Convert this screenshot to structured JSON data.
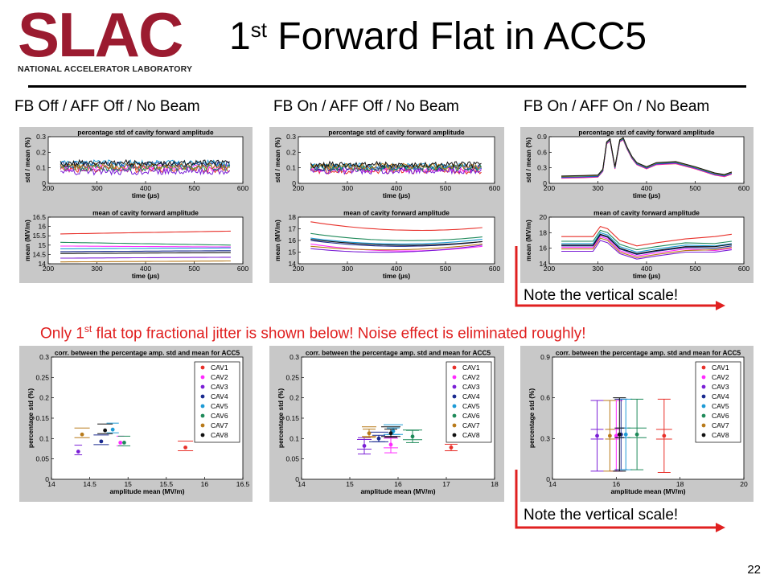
{
  "logo": {
    "text": "SLAC",
    "subtitle": "NATIONAL ACCELERATOR LABORATORY",
    "color": "#9b1b30"
  },
  "slide": {
    "title_prefix": "1",
    "title_sup": "st",
    "title_rest": " Forward Flat in ACC5",
    "page_number": "22"
  },
  "columns": [
    "FB Off / AFF Off / No Beam",
    "FB On / AFF Off / No Beam",
    "FB On / AFF On / No Beam"
  ],
  "notes": {
    "top_right": "Note the vertical scale!",
    "bottom_right": "Note the vertical scale!",
    "middle_pre": "Only 1",
    "middle_sup": "st",
    "middle_post": " flat top fractional jitter is shown below! Noise effect is eliminated roughly!",
    "red": "#e02020"
  },
  "series_colors": {
    "CAV1": "#e8302a",
    "CAV2": "#ff2bff",
    "CAV3": "#7b1fd6",
    "CAV4": "#1a2a8f",
    "CAV5": "#1e9bd6",
    "CAV6": "#1f8a5a",
    "CAV7": "#b87a1a",
    "CAV8": "#111111"
  },
  "chart_data": [
    {
      "id": "std1",
      "type": "line",
      "title": "percentage std of cavity forward amplitude",
      "xlabel": "time (µs)",
      "ylabel": "std / mean (%)",
      "xlim": [
        200,
        600
      ],
      "ylim": [
        0,
        0.3
      ],
      "xticks": [
        200,
        300,
        400,
        500,
        600
      ],
      "yticks": [
        0,
        0.1,
        0.2,
        0.3
      ],
      "xticklabels": [
        "200",
        "300",
        "400",
        "500",
        "600"
      ],
      "yticklabels": [
        "0",
        "0.1",
        "0.2",
        "0.3"
      ],
      "x_range": [
        225,
        575
      ],
      "series": [
        {
          "name": "CAV1",
          "level": 0.09
        },
        {
          "name": "CAV2",
          "level": 0.1
        },
        {
          "name": "CAV3",
          "level": 0.075
        },
        {
          "name": "CAV4",
          "level": 0.12
        },
        {
          "name": "CAV5",
          "level": 0.13
        },
        {
          "name": "CAV6",
          "level": 0.1
        },
        {
          "name": "CAV7",
          "level": 0.11
        },
        {
          "name": "CAV8",
          "level": 0.13
        }
      ]
    },
    {
      "id": "std2",
      "type": "line",
      "title": "percentage std of cavity forward amplitude",
      "xlabel": "time (µs)",
      "ylabel": "std / mean (%)",
      "xlim": [
        200,
        600
      ],
      "ylim": [
        0,
        0.3
      ],
      "xticks": [
        200,
        300,
        400,
        500,
        600
      ],
      "yticks": [
        0,
        0.1,
        0.2,
        0.3
      ],
      "xticklabels": [
        "200",
        "300",
        "400",
        "500",
        "600"
      ],
      "yticklabels": [
        "0",
        "0.1",
        "0.2",
        "0.3"
      ],
      "x_range": [
        225,
        575
      ],
      "series": [
        {
          "name": "CAV1",
          "level": 0.08
        },
        {
          "name": "CAV2",
          "level": 0.09
        },
        {
          "name": "CAV3",
          "level": 0.08
        },
        {
          "name": "CAV4",
          "level": 0.1
        },
        {
          "name": "CAV5",
          "level": 0.11
        },
        {
          "name": "CAV6",
          "level": 0.1
        },
        {
          "name": "CAV7",
          "level": 0.11
        },
        {
          "name": "CAV8",
          "level": 0.12
        }
      ]
    },
    {
      "id": "std3",
      "type": "line",
      "title": "percentage std of cavity forward amplitude",
      "xlabel": "time (µs)",
      "ylabel": "std / mean (%)",
      "xlim": [
        200,
        600
      ],
      "ylim": [
        0,
        0.9
      ],
      "xticks": [
        200,
        300,
        400,
        500,
        600
      ],
      "yticks": [
        0,
        0.3,
        0.6,
        0.9
      ],
      "xticklabels": [
        "200",
        "300",
        "400",
        "500",
        "600"
      ],
      "yticklabels": [
        "0",
        "0.3",
        "0.6",
        "0.9"
      ],
      "x": [
        225,
        270,
        300,
        310,
        318,
        325,
        335,
        345,
        352,
        360,
        370,
        380,
        400,
        420,
        460,
        500,
        540,
        560,
        575
      ],
      "y": [
        0.12,
        0.13,
        0.14,
        0.25,
        0.78,
        0.84,
        0.3,
        0.82,
        0.86,
        0.68,
        0.5,
        0.38,
        0.3,
        0.38,
        0.4,
        0.3,
        0.18,
        0.15,
        0.2
      ],
      "series_names": [
        "CAV1",
        "CAV2",
        "CAV3",
        "CAV4",
        "CAV5",
        "CAV6",
        "CAV7",
        "CAV8"
      ]
    },
    {
      "id": "mean1",
      "type": "line",
      "title": "mean of cavity forward amplitude",
      "xlabel": "time (µs)",
      "ylabel": "mean (MV/m)",
      "xlim": [
        200,
        600
      ],
      "ylim": [
        14,
        16.5
      ],
      "xticks": [
        200,
        300,
        400,
        500,
        600
      ],
      "yticks": [
        14,
        14.5,
        15,
        15.5,
        16,
        16.5
      ],
      "xticklabels": [
        "200",
        "300",
        "400",
        "500",
        "600"
      ],
      "yticklabels": [
        "14",
        "14.5",
        "15",
        "15.5",
        "16",
        "16.5"
      ],
      "x_range": [
        225,
        575
      ],
      "series": [
        {
          "name": "CAV1",
          "start": 15.6,
          "end": 15.75
        },
        {
          "name": "CAV2",
          "start": 14.95,
          "end": 14.9
        },
        {
          "name": "CAV3",
          "start": 14.3,
          "end": 14.35
        },
        {
          "name": "CAV4",
          "start": 14.65,
          "end": 14.7
        },
        {
          "name": "CAV5",
          "start": 14.8,
          "end": 14.85
        },
        {
          "name": "CAV6",
          "start": 15.15,
          "end": 15.0
        },
        {
          "name": "CAV7",
          "start": 14.1,
          "end": 14.15
        },
        {
          "name": "CAV8",
          "start": 14.55,
          "end": 14.6
        }
      ]
    },
    {
      "id": "mean2",
      "type": "line",
      "title": "mean of cavity forward amplitude",
      "xlabel": "time (µs)",
      "ylabel": "mean (MV/m)",
      "xlim": [
        200,
        600
      ],
      "ylim": [
        14,
        18
      ],
      "xticks": [
        200,
        300,
        400,
        500,
        600
      ],
      "yticks": [
        14,
        15,
        16,
        17,
        18
      ],
      "xticklabels": [
        "200",
        "300",
        "400",
        "500",
        "600"
      ],
      "yticklabels": [
        "14",
        "15",
        "16",
        "17",
        "18"
      ],
      "x_range": [
        225,
        575
      ],
      "series": [
        {
          "name": "CAV1",
          "start": 17.6,
          "end": 17.1,
          "dip": 16.9
        },
        {
          "name": "CAV2",
          "start": 15.7,
          "end": 15.5,
          "dip": 15.1
        },
        {
          "name": "CAV3",
          "start": 15.3,
          "end": 15.6,
          "dip": 15.0
        },
        {
          "name": "CAV4",
          "start": 16.0,
          "end": 15.9,
          "dip": 15.5
        },
        {
          "name": "CAV5",
          "start": 16.2,
          "end": 16.1,
          "dip": 15.7
        },
        {
          "name": "CAV6",
          "start": 16.6,
          "end": 16.3,
          "dip": 16.0
        },
        {
          "name": "CAV7",
          "start": 15.5,
          "end": 15.7,
          "dip": 15.2
        },
        {
          "name": "CAV8",
          "start": 16.1,
          "end": 15.9,
          "dip": 15.6
        }
      ]
    },
    {
      "id": "mean3",
      "type": "line",
      "title": "mean of cavity forward amplitude",
      "xlabel": "time (µs)",
      "ylabel": "mean (MV/m)",
      "xlim": [
        200,
        600
      ],
      "ylim": [
        14,
        20
      ],
      "xticks": [
        200,
        300,
        400,
        500,
        600
      ],
      "yticks": [
        14,
        16,
        18,
        20
      ],
      "xticklabels": [
        "200",
        "300",
        "400",
        "500",
        "600"
      ],
      "yticklabels": [
        "14",
        "16",
        "18",
        "20"
      ],
      "x_range": [
        225,
        575
      ],
      "series": [
        {
          "name": "CAV1",
          "start": 17.5,
          "end": 17.8,
          "bump": 18.8,
          "dip": 16.3
        },
        {
          "name": "CAV2",
          "start": 16.1,
          "end": 16.0,
          "bump": 17.5,
          "dip": 15.0
        },
        {
          "name": "CAV3",
          "start": 15.6,
          "end": 15.8,
          "bump": 17.0,
          "dip": 14.6
        },
        {
          "name": "CAV4",
          "start": 16.3,
          "end": 16.3,
          "bump": 17.7,
          "dip": 15.2
        },
        {
          "name": "CAV5",
          "start": 16.6,
          "end": 16.6,
          "bump": 18.0,
          "dip": 15.5
        },
        {
          "name": "CAV6",
          "start": 16.9,
          "end": 16.9,
          "bump": 18.3,
          "dip": 15.8
        },
        {
          "name": "CAV7",
          "start": 15.9,
          "end": 16.1,
          "bump": 17.3,
          "dip": 14.8
        },
        {
          "name": "CAV8",
          "start": 16.4,
          "end": 16.5,
          "bump": 17.8,
          "dip": 15.3
        }
      ]
    },
    {
      "id": "corr1",
      "type": "scatter",
      "title": "corr. between the percentage amp. std and mean for ACC5",
      "xlabel": "amplitude mean (MV/m)",
      "ylabel": "percentage std (%)",
      "xlim": [
        14,
        16.5
      ],
      "ylim": [
        0,
        0.3
      ],
      "xticks": [
        14,
        14.5,
        15,
        15.5,
        16,
        16.5
      ],
      "yticks": [
        0,
        0.05,
        0.1,
        0.15,
        0.2,
        0.25,
        0.3
      ],
      "xticklabels": [
        "14",
        "14.5",
        "15",
        "15.5",
        "16",
        "16.5"
      ],
      "yticklabels": [
        "0",
        "0.05",
        "0.1",
        "0.15",
        "0.2",
        "0.25",
        "0.3"
      ],
      "legend_position": "top-right",
      "points": [
        {
          "name": "CAV1",
          "x": 15.75,
          "y": 0.078,
          "xerr": 0.1
        },
        {
          "name": "CAV2",
          "x": 14.9,
          "y": 0.09,
          "xerr": 0.05
        },
        {
          "name": "CAV3",
          "x": 14.35,
          "y": 0.068,
          "xerr": 0.05
        },
        {
          "name": "CAV4",
          "x": 14.65,
          "y": 0.093,
          "xerr": 0.1
        },
        {
          "name": "CAV5",
          "x": 14.8,
          "y": 0.122,
          "xerr": 0.08
        },
        {
          "name": "CAV6",
          "x": 14.95,
          "y": 0.09,
          "xerr": 0.08
        },
        {
          "name": "CAV7",
          "x": 14.4,
          "y": 0.11,
          "xerr": 0.1
        },
        {
          "name": "CAV8",
          "x": 14.7,
          "y": 0.12,
          "xerr": 0.1
        }
      ]
    },
    {
      "id": "corr2",
      "type": "scatter",
      "title": "corr. between the percentage amp. std and mean for ACC5",
      "xlabel": "amplitude mean (MV/m)",
      "ylabel": "percentage std (%)",
      "xlim": [
        14,
        18
      ],
      "ylim": [
        0,
        0.3
      ],
      "xticks": [
        14,
        15,
        16,
        17,
        18
      ],
      "yticks": [
        0,
        0.05,
        0.1,
        0.15,
        0.2,
        0.25,
        0.3
      ],
      "xticklabels": [
        "14",
        "15",
        "16",
        "17",
        "18"
      ],
      "yticklabels": [
        "0",
        "0.05",
        "0.1",
        "0.15",
        "0.2",
        "0.25",
        "0.3"
      ],
      "legend_position": "top-right",
      "points": [
        {
          "name": "CAV1",
          "x": 17.1,
          "y": 0.078,
          "xerr": 0.1,
          "yerr": 0.008
        },
        {
          "name": "CAV2",
          "x": 15.85,
          "y": 0.085,
          "xerr": 0.15,
          "yerr": 0.02
        },
        {
          "name": "CAV3",
          "x": 15.3,
          "y": 0.082,
          "xerr": 0.15,
          "yerr": 0.02
        },
        {
          "name": "CAV4",
          "x": 15.6,
          "y": 0.1,
          "xerr": 0.2,
          "yerr": 0.008
        },
        {
          "name": "CAV5",
          "x": 15.9,
          "y": 0.118,
          "xerr": 0.2,
          "yerr": 0.008
        },
        {
          "name": "CAV6",
          "x": 16.3,
          "y": 0.105,
          "xerr": 0.2,
          "yerr": 0.015
        },
        {
          "name": "CAV7",
          "x": 15.4,
          "y": 0.113,
          "xerr": 0.15,
          "yerr": 0.01
        },
        {
          "name": "CAV8",
          "x": 15.85,
          "y": 0.113,
          "xerr": 0.2,
          "yerr": 0.01
        }
      ]
    },
    {
      "id": "corr3",
      "type": "scatter",
      "title": "corr. between the percentage amp. std and mean for ACC5",
      "xlabel": "amplitude mean (MV/m)",
      "ylabel": "percentage std (%)",
      "xlim": [
        14,
        20
      ],
      "ylim": [
        0,
        0.9
      ],
      "xticks": [
        14,
        16,
        18,
        20
      ],
      "yticks": [
        0,
        0.3,
        0.6,
        0.9
      ],
      "xticklabels": [
        "14",
        "16",
        "18",
        "20"
      ],
      "yticklabels": [
        "0",
        "0.3",
        "0.6",
        "0.9"
      ],
      "legend_position": "top-right",
      "points": [
        {
          "name": "CAV1",
          "x": 17.5,
          "y": 0.32,
          "xerr": 0.25,
          "yerr": 0.27
        },
        {
          "name": "CAV2",
          "x": 16.0,
          "y": 0.32,
          "xerr": 0.1,
          "yerr": 0.26
        },
        {
          "name": "CAV3",
          "x": 15.4,
          "y": 0.32,
          "xerr": 0.2,
          "yerr": 0.26
        },
        {
          "name": "CAV4",
          "x": 16.15,
          "y": 0.33,
          "xerr": 0.15,
          "yerr": 0.26
        },
        {
          "name": "CAV5",
          "x": 16.3,
          "y": 0.33,
          "xerr": 0.15,
          "yerr": 0.26
        },
        {
          "name": "CAV6",
          "x": 16.65,
          "y": 0.33,
          "xerr": 0.3,
          "yerr": 0.26
        },
        {
          "name": "CAV7",
          "x": 15.8,
          "y": 0.32,
          "xerr": 0.15,
          "yerr": 0.26
        },
        {
          "name": "CAV8",
          "x": 16.1,
          "y": 0.33,
          "xerr": 0.15,
          "yerr": 0.27
        }
      ]
    }
  ]
}
